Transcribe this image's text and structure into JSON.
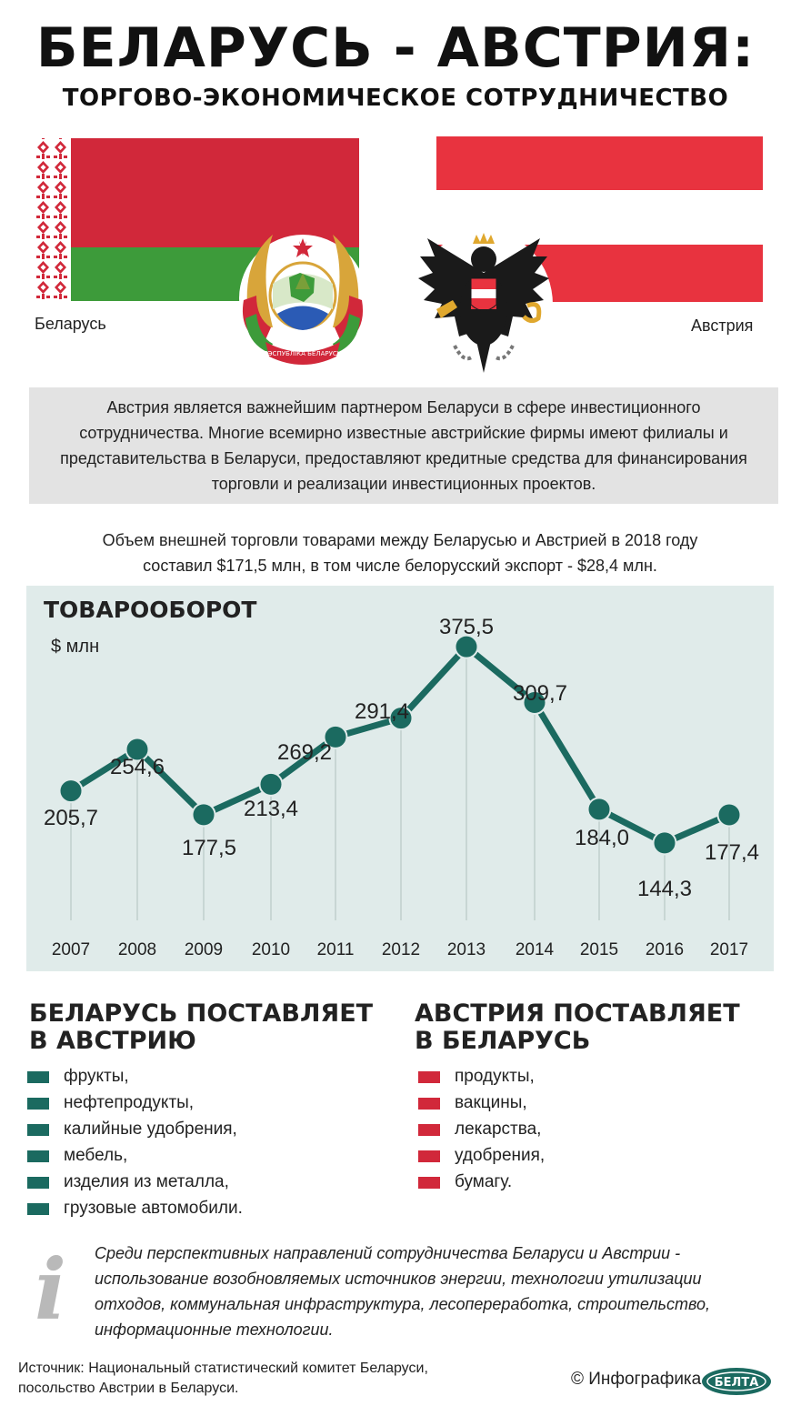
{
  "header": {
    "title": "БЕЛАРУСЬ - АВСТРИЯ:",
    "subtitle": "ТОРГОВО-ЭКОНОМИЧЕСКОЕ СОТРУДНИЧЕСТВО"
  },
  "countries": {
    "left": "Беларусь",
    "right": "Австрия",
    "emblem_text": "РЭСПУБЛІКА БЕЛАРУСЬ"
  },
  "intro": "Австрия является важнейшим партнером Беларуси в сфере инвестиционного сотрудничества. Многие всемирно известные австрийские фирмы имеют филиалы и представительства в Беларуси, предоставляют кредитные средства для финансирования торговли и реализации инвестиционных проектов.",
  "trade_line1": "Объем внешней торговли товарами между Беларусью и Австрией в 2018 году",
  "trade_line2": "составил $171,5 млн, в том числе белорусский экспорт - $28,4 млн.",
  "colors": {
    "teal": "#1b6a60",
    "red": "#d1283a",
    "green": "#3d9b3a",
    "panel": "#e0ebea"
  },
  "chart_data": {
    "type": "line",
    "title": "ТОВАРООБОРОТ",
    "ylabel": "$ млн",
    "categories": [
      "2007",
      "2008",
      "2009",
      "2010",
      "2011",
      "2012",
      "2013",
      "2014",
      "2015",
      "2016",
      "2017"
    ],
    "values": [
      205.7,
      254.6,
      177.5,
      213.4,
      269.2,
      291.4,
      375.5,
      309.7,
      184.0,
      144.3,
      177.4
    ],
    "value_labels": [
      "205,7",
      "254,6",
      "177,5",
      "213,4",
      "269,2",
      "291,4",
      "375,5",
      "309,7",
      "184,0",
      "144,3",
      "177,4"
    ],
    "grid": false
  },
  "by_export": {
    "title_line1": "БЕЛАРУСЬ ПОСТАВЛЯЕТ",
    "title_line2": "В АВСТРИЮ",
    "items": [
      "фрукты,",
      "нефтепродукты,",
      "калийные удобрения,",
      "мебель,",
      "изделия из металла,",
      "грузовые автомобили."
    ]
  },
  "at_export": {
    "title_line1": "АВСТРИЯ ПОСТАВЛЯЕТ",
    "title_line2": "В БЕЛАРУСЬ",
    "items": [
      "продукты,",
      "вакцины,",
      "лекарства,",
      "удобрения,",
      "бумагу."
    ]
  },
  "info": {
    "icon_letter": "i",
    "text": "Среди перспективных направлений сотрудничества Беларуси и Австрии - использование возобновляемых источников энергии, технологии утилизации отходов, коммунальная инфраструктура, лесопереработка, строительство, информационные технологии."
  },
  "footer": {
    "source_line1": "Источник: Национальный статистический комитет Беларуси,",
    "source_line2": "посольство Австрии в Беларуси.",
    "credit": "© Инфографика",
    "logo_text": "БЕЛТА"
  }
}
